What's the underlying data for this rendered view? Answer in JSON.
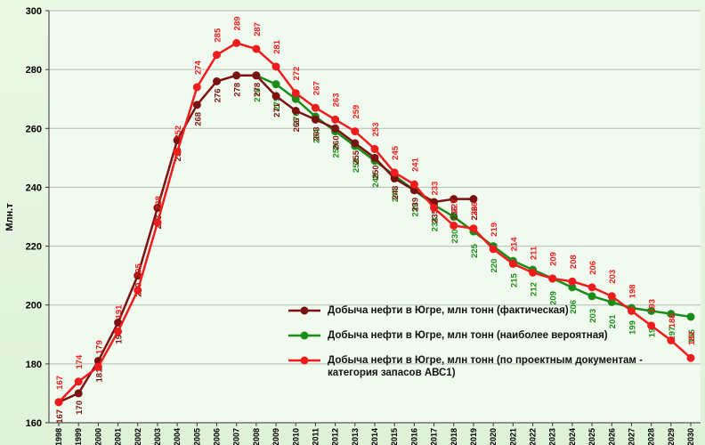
{
  "chart_data": {
    "type": "line",
    "ylabel": "Млн.т",
    "categories": [
      "1998",
      "1999",
      "2000",
      "2001",
      "2002",
      "2003",
      "2004",
      "2005",
      "2006",
      "2007",
      "2008",
      "2009",
      "2010",
      "2011",
      "2012",
      "2013",
      "2014",
      "2015",
      "2016",
      "2017",
      "2018",
      "2019",
      "2020",
      "2021",
      "2022",
      "2023",
      "2024",
      "2025",
      "2026",
      "2027",
      "2028",
      "2029",
      "2030"
    ],
    "series": [
      {
        "name": "Добыча нефти в Югре, млн тонн (фактическая)",
        "color": "#7a1212",
        "values": [
          167,
          170,
          181,
          194,
          210,
          233,
          256,
          268,
          276,
          278,
          278,
          271,
          266,
          263,
          260,
          255,
          250,
          243,
          239,
          235,
          236,
          236,
          null,
          null,
          null,
          null,
          null,
          null,
          null,
          null,
          null,
          null,
          null
        ]
      },
      {
        "name": "Добыча нефти в Югре, млн тонн (наиболее вероятная)",
        "color": "#1a8c1a",
        "values": [
          null,
          null,
          null,
          null,
          null,
          null,
          null,
          null,
          null,
          null,
          278,
          275,
          270,
          264,
          259,
          254,
          249,
          244,
          239,
          234,
          230,
          225,
          220,
          215,
          212,
          209,
          206,
          203,
          201,
          199,
          198,
          197,
          196
        ]
      },
      {
        "name": "Добыча нефти в Югре, млн тонн (по проектным документам - категория запасов АВС1)",
        "color": "#ee1c1c",
        "values": [
          167,
          174,
          179,
          191,
          205,
          228,
          252,
          274,
          285,
          289,
          287,
          281,
          272,
          267,
          263,
          259,
          253,
          245,
          241,
          233,
          227,
          226,
          219,
          214,
          211,
          209,
          208,
          206,
          203,
          198,
          193,
          188,
          182
        ]
      }
    ],
    "ylim": [
      160,
      300
    ],
    "yticks": [
      160,
      180,
      200,
      220,
      240,
      260,
      280,
      300
    ],
    "grid": true
  }
}
